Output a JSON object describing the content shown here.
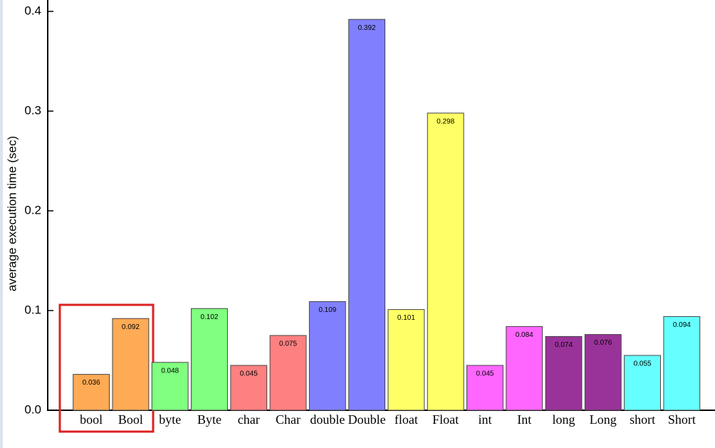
{
  "chart_data": {
    "type": "bar",
    "y_label": "average execution time (sec)",
    "categories": [
      "bool",
      "Bool",
      "byte",
      "Byte",
      "char",
      "Char",
      "double",
      "Double",
      "float",
      "Float",
      "int",
      "Int",
      "long",
      "Long",
      "short",
      "Short"
    ],
    "values": [
      0.036,
      0.092,
      0.048,
      0.102,
      0.045,
      0.075,
      0.109,
      0.392,
      0.101,
      0.298,
      0.045,
      0.084,
      0.074,
      0.076,
      0.055,
      0.094
    ],
    "colors": [
      "#ffaa55",
      "#ffaa55",
      "#80ff80",
      "#80ff80",
      "#ff8080",
      "#ff8080",
      "#8080ff",
      "#8080ff",
      "#ffff66",
      "#ffff66",
      "#ff66ff",
      "#ff66ff",
      "#993399",
      "#993399",
      "#66ffff",
      "#66ffff"
    ],
    "ylim": [
      0,
      0.4
    ],
    "yticks": [
      {
        "value": 0,
        "label": "0.0"
      },
      0.1,
      0.2,
      0.3,
      0.4
    ]
  }
}
